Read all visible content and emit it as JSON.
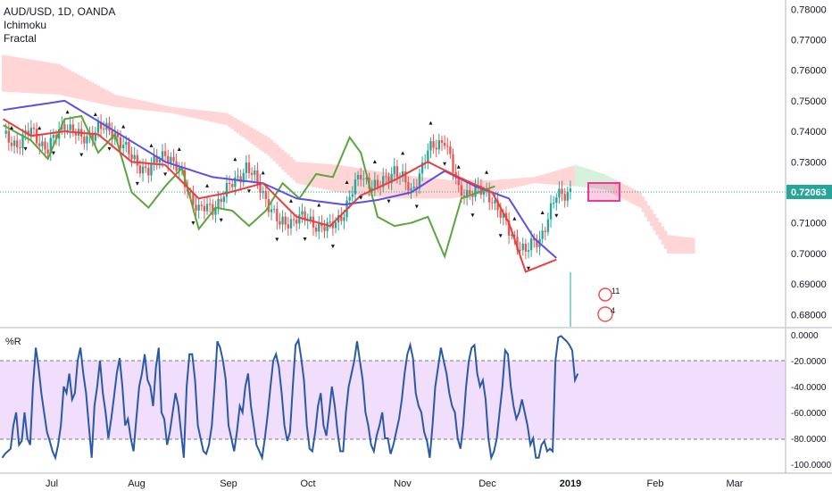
{
  "legend": {
    "symbol": "AUD/USD, 1D, OANDA",
    "indicator1": "Ichimoku",
    "indicator2": "Fractal"
  },
  "price_panel": {
    "y_ticks": [
      "0.78000",
      "0.77000",
      "0.76000",
      "0.75000",
      "0.74000",
      "0.73000",
      "0.72000",
      "0.71000",
      "0.70000",
      "0.69000",
      "0.68000"
    ],
    "last_price": "0.72063",
    "event_labels": [
      "11",
      "4"
    ]
  },
  "wr_panel": {
    "label": "%R",
    "y_ticks": [
      "0.0000",
      "-20.0000",
      "-40.0000",
      "-60.0000",
      "-80.0000",
      "-100.0000"
    ]
  },
  "x_ticks": [
    "Jul",
    "Aug",
    "Sep",
    "Oct",
    "Nov",
    "Dec",
    "2019",
    "Feb",
    "Mar"
  ],
  "colors": {
    "up": "#26a69a",
    "down": "#ef5350",
    "tenkan": "#ef3b3b",
    "kijun": "#5b4fe6",
    "chikou": "#5aa63c",
    "cloud_bear": "#ffd5d5",
    "cloud_bull": "#d6f0dc",
    "wr_line": "#2a5aa6",
    "wr_band": "#f1defd",
    "highlight": "#ea3b93"
  },
  "chart_data": [
    {
      "type": "candlestick",
      "title": "AUD/USD, 1D, OANDA",
      "indicators": [
        "Ichimoku",
        "Fractal"
      ],
      "x_labels": [
        "Jul",
        "Aug",
        "Sep",
        "Oct",
        "Nov",
        "Dec",
        "2019",
        "Feb",
        "Mar"
      ],
      "ylim": [
        0.676,
        0.783
      ],
      "last_price": 0.72063,
      "close_anchors": [
        [
          0,
          0.738
        ],
        [
          5,
          0.736
        ],
        [
          10,
          0.74
        ],
        [
          16,
          0.734
        ],
        [
          22,
          0.743
        ],
        [
          28,
          0.737
        ],
        [
          34,
          0.741
        ],
        [
          40,
          0.7395
        ],
        [
          46,
          0.731
        ],
        [
          52,
          0.727
        ],
        [
          58,
          0.7335
        ],
        [
          64,
          0.725
        ],
        [
          70,
          0.714
        ],
        [
          75,
          0.715
        ],
        [
          81,
          0.7215
        ],
        [
          87,
          0.7285
        ],
        [
          93,
          0.72
        ],
        [
          99,
          0.709
        ],
        [
          105,
          0.712
        ],
        [
          111,
          0.71
        ],
        [
          117,
          0.708
        ],
        [
          122,
          0.714
        ],
        [
          128,
          0.726
        ],
        [
          134,
          0.721
        ],
        [
          140,
          0.728
        ],
        [
          146,
          0.72
        ],
        [
          152,
          0.733
        ],
        [
          158,
          0.738
        ],
        [
          163,
          0.72
        ],
        [
          169,
          0.7205
        ],
        [
          175,
          0.7185
        ],
        [
          181,
          0.707
        ],
        [
          187,
          0.7005
        ],
        [
          192,
          0.705
        ],
        [
          198,
          0.7185
        ],
        [
          203,
          0.721
        ]
      ],
      "tenkan_anchors": [
        [
          0,
          0.744
        ],
        [
          10,
          0.7385
        ],
        [
          22,
          0.74
        ],
        [
          34,
          0.739
        ],
        [
          46,
          0.73
        ],
        [
          58,
          0.729
        ],
        [
          70,
          0.718
        ],
        [
          81,
          0.72
        ],
        [
          93,
          0.723
        ],
        [
          105,
          0.712
        ],
        [
          117,
          0.709
        ],
        [
          128,
          0.719
        ],
        [
          140,
          0.724
        ],
        [
          152,
          0.73
        ],
        [
          163,
          0.725
        ],
        [
          175,
          0.72
        ],
        [
          181,
          0.71
        ],
        [
          187,
          0.694
        ],
        [
          198,
          0.698
        ]
      ],
      "kijun_anchors": [
        [
          0,
          0.747
        ],
        [
          22,
          0.75
        ],
        [
          40,
          0.74
        ],
        [
          58,
          0.73
        ],
        [
          75,
          0.725
        ],
        [
          93,
          0.723
        ],
        [
          105,
          0.718
        ],
        [
          122,
          0.716
        ],
        [
          134,
          0.7175
        ],
        [
          146,
          0.72
        ],
        [
          158,
          0.727
        ],
        [
          169,
          0.722
        ],
        [
          181,
          0.718
        ],
        [
          190,
          0.705
        ],
        [
          198,
          0.6985
        ]
      ],
      "chikou_anchors": [
        [
          0,
          0.742
        ],
        [
          10,
          0.737
        ],
        [
          16,
          0.731
        ],
        [
          22,
          0.744
        ],
        [
          28,
          0.745
        ],
        [
          34,
          0.733
        ],
        [
          40,
          0.739
        ],
        [
          46,
          0.72
        ],
        [
          52,
          0.715
        ],
        [
          58,
          0.722
        ],
        [
          64,
          0.728
        ],
        [
          70,
          0.708
        ],
        [
          76,
          0.715
        ],
        [
          82,
          0.714
        ],
        [
          88,
          0.709
        ],
        [
          94,
          0.714
        ],
        [
          100,
          0.723
        ],
        [
          106,
          0.718
        ],
        [
          112,
          0.726
        ],
        [
          118,
          0.725
        ],
        [
          124,
          0.738
        ],
        [
          128,
          0.733
        ],
        [
          134,
          0.712
        ],
        [
          140,
          0.709
        ],
        [
          146,
          0.71
        ],
        [
          152,
          0.712
        ],
        [
          158,
          0.699
        ],
        [
          164,
          0.718
        ],
        [
          170,
          0.72
        ],
        [
          176,
          0.722
        ]
      ],
      "cloud_a_anchors": [
        [
          0,
          0.765
        ],
        [
          20,
          0.762
        ],
        [
          40,
          0.752
        ],
        [
          60,
          0.748
        ],
        [
          80,
          0.746
        ],
        [
          95,
          0.738
        ],
        [
          105,
          0.73
        ],
        [
          120,
          0.729
        ],
        [
          140,
          0.726
        ],
        [
          160,
          0.724
        ],
        [
          175,
          0.724
        ],
        [
          190,
          0.725
        ],
        [
          205,
          0.729
        ],
        [
          215,
          0.726
        ],
        [
          228,
          0.72
        ],
        [
          238,
          0.706
        ],
        [
          248,
          0.705
        ]
      ],
      "cloud_b_anchors": [
        [
          0,
          0.753
        ],
        [
          20,
          0.752
        ],
        [
          40,
          0.748
        ],
        [
          60,
          0.746
        ],
        [
          80,
          0.742
        ],
        [
          95,
          0.732
        ],
        [
          105,
          0.723
        ],
        [
          120,
          0.72
        ],
        [
          140,
          0.718
        ],
        [
          160,
          0.718
        ],
        [
          175,
          0.72
        ],
        [
          190,
          0.723
        ],
        [
          205,
          0.722
        ],
        [
          215,
          0.721
        ],
        [
          228,
          0.715
        ],
        [
          238,
          0.7
        ],
        [
          248,
          0.7
        ]
      ]
    },
    {
      "type": "line",
      "title": "%R",
      "ylim": [
        -100,
        0
      ],
      "bands": [
        -20,
        -80
      ],
      "values": [
        -95,
        -92,
        -90,
        -88,
        -70,
        -60,
        -85,
        -82,
        -60,
        -80,
        -85,
        -40,
        -10,
        -25,
        -45,
        -60,
        -75,
        -82,
        -90,
        -95,
        -85,
        -70,
        -40,
        -45,
        -30,
        -50,
        -45,
        -20,
        -10,
        -30,
        -45,
        -70,
        -95,
        -55,
        -40,
        -20,
        -45,
        -60,
        -80,
        -65,
        -48,
        -30,
        -18,
        -40,
        -70,
        -65,
        -80,
        -90,
        -65,
        -40,
        -30,
        -15,
        -35,
        -40,
        -55,
        -25,
        -10,
        -60,
        -65,
        -85,
        -75,
        -60,
        -45,
        -55,
        -75,
        -95,
        -40,
        -15,
        -15,
        -35,
        -70,
        -80,
        -90,
        -92,
        -85,
        -70,
        -40,
        -5,
        -10,
        -20,
        -35,
        -70,
        -80,
        -90,
        -75,
        -55,
        -60,
        -40,
        -30,
        -55,
        -70,
        -85,
        -90,
        -95,
        -80,
        -62,
        -40,
        -20,
        -15,
        -25,
        -45,
        -70,
        -82,
        -75,
        -40,
        -8,
        -4,
        -18,
        -35,
        -70,
        -88,
        -90,
        -75,
        -55,
        -45,
        -70,
        -78,
        -60,
        -40,
        -55,
        -75,
        -90,
        -90,
        -60,
        -40,
        -30,
        -20,
        -5,
        -20,
        -35,
        -60,
        -70,
        -85,
        -90,
        -78,
        -70,
        -60,
        -80,
        -80,
        -92,
        -85,
        -75,
        -65,
        -50,
        -30,
        -15,
        -8,
        -18,
        -45,
        -55,
        -60,
        -75,
        -82,
        -95,
        -70,
        -40,
        -25,
        -10,
        -20,
        -30,
        -45,
        -55,
        -60,
        -80,
        -88,
        -70,
        -40,
        -20,
        -10,
        -8,
        -30,
        -40,
        -35,
        -50,
        -80,
        -95,
        -90,
        -80,
        -60,
        -40,
        -12,
        -15,
        -40,
        -55,
        -65,
        -60,
        -50,
        -60,
        -70,
        -85,
        -80,
        -95,
        -95,
        -85,
        -82,
        -90,
        -88,
        -90,
        -20,
        -2,
        -1,
        -3,
        -5,
        -8,
        -12,
        -35,
        -30
      ]
    }
  ]
}
